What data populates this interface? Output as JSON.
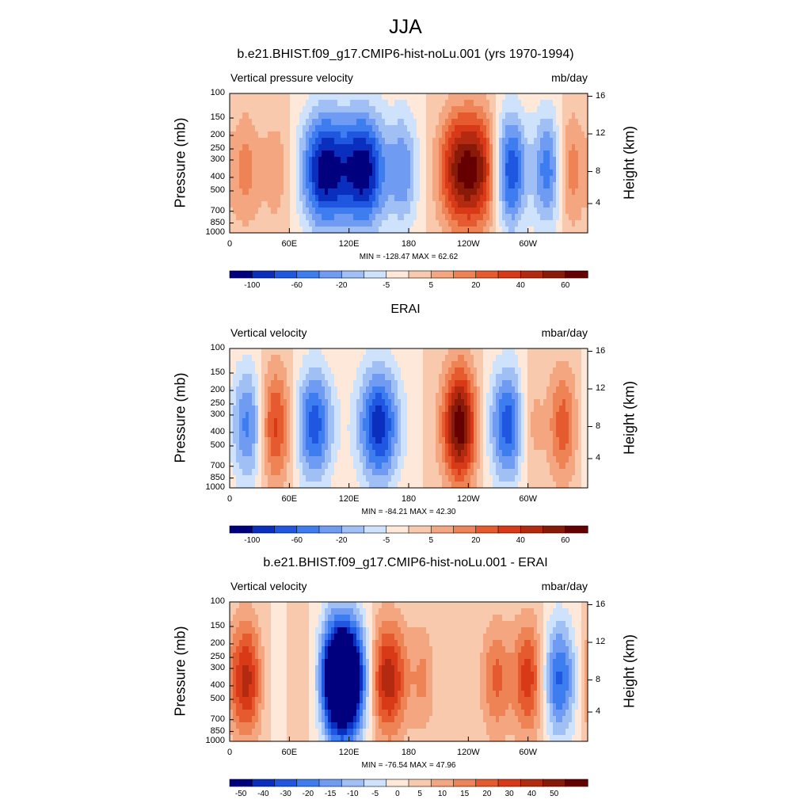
{
  "figure": {
    "main_title": "JJA"
  },
  "chart_data": [
    {
      "type": "heatmap",
      "title": "b.e21.BHIST.f09_g17.CMIP6-hist-noLu.001 (yrs 1970-1994)",
      "left_label": "Vertical pressure velocity",
      "units_label": "mb/day",
      "ylabel": "Pressure (mb)",
      "ylabel_right": "Height (km)",
      "xticks": [
        "0",
        "60E",
        "120E",
        "180",
        "120W",
        "60W"
      ],
      "yticks": [
        "100",
        "150",
        "200",
        "250",
        "300",
        "400",
        "500",
        "700",
        "850",
        "1000"
      ],
      "height_ticks": [
        "16",
        "12",
        "8",
        "4"
      ],
      "stats": "MIN = -128.47  MAX =  62.62",
      "colorbar": {
        "levels": [
          "-100",
          "-60",
          "-20",
          "-5",
          "5",
          "20",
          "40",
          "60"
        ],
        "colors": [
          "#00007f",
          "#0a2fbf",
          "#1f57e0",
          "#3d7df0",
          "#6f9cf2",
          "#a0c0f5",
          "#cfe2fb",
          "#fde8d9",
          "#f9c9ae",
          "#f4a680",
          "#ee8456",
          "#e65a30",
          "#d83a18",
          "#b32a10",
          "#8a1a08",
          "#660000"
        ]
      },
      "features": [
        {
          "lon": 20,
          "sign": 1,
          "strength": 0.45
        },
        {
          "lon": 32,
          "sign": -1,
          "strength": 0.55
        },
        {
          "lon": 40,
          "sign": 1,
          "strength": 0.5
        },
        {
          "lon": 95,
          "sign": -1,
          "strength": 0.75
        },
        {
          "lon": 135,
          "sign": -1,
          "strength": 0.75
        },
        {
          "lon": 175,
          "sign": -1,
          "strength": 0.35
        },
        {
          "lon": 230,
          "sign": 1,
          "strength": 0.6
        },
        {
          "lon": 255,
          "sign": 1,
          "strength": 0.55
        },
        {
          "lon": 285,
          "sign": -1,
          "strength": 0.7
        },
        {
          "lon": 300,
          "sign": 1,
          "strength": 0.3
        },
        {
          "lon": 320,
          "sign": -1,
          "strength": 0.45
        },
        {
          "lon": 342,
          "sign": 1,
          "strength": 0.3
        }
      ]
    },
    {
      "type": "heatmap",
      "title": "ERAI",
      "left_label": "Vertical velocity",
      "units_label": "mbar/day",
      "ylabel": "Pressure (mb)",
      "ylabel_right": "Height (km)",
      "xticks": [
        "0",
        "60E",
        "120E",
        "180",
        "120W",
        "60W"
      ],
      "yticks": [
        "100",
        "150",
        "200",
        "250",
        "300",
        "400",
        "500",
        "700",
        "850",
        "1000"
      ],
      "height_ticks": [
        "16",
        "12",
        "8",
        "4"
      ],
      "stats": "MIN = -84.21  MAX =  42.30",
      "colorbar": {
        "levels": [
          "-100",
          "-60",
          "-20",
          "-5",
          "5",
          "20",
          "40",
          "60"
        ],
        "colors": [
          "#00007f",
          "#0a2fbf",
          "#1f57e0",
          "#3d7df0",
          "#6f9cf2",
          "#a0c0f5",
          "#cfe2fb",
          "#fde8d9",
          "#f9c9ae",
          "#f4a680",
          "#ee8456",
          "#e65a30",
          "#d83a18",
          "#b32a10",
          "#8a1a08",
          "#660000"
        ]
      },
      "features": [
        {
          "lon": 22,
          "sign": -1,
          "strength": 0.55
        },
        {
          "lon": 42,
          "sign": 1,
          "strength": 0.55
        },
        {
          "lon": 85,
          "sign": -1,
          "strength": 0.55
        },
        {
          "lon": 150,
          "sign": -1,
          "strength": 0.65
        },
        {
          "lon": 228,
          "sign": 1,
          "strength": 0.45
        },
        {
          "lon": 235,
          "sign": 1,
          "strength": 0.35
        },
        {
          "lon": 282,
          "sign": -1,
          "strength": 0.6
        },
        {
          "lon": 300,
          "sign": 1,
          "strength": 0.3
        },
        {
          "lon": 335,
          "sign": 1,
          "strength": 0.35
        }
      ]
    },
    {
      "type": "heatmap",
      "title": "b.e21.BHIST.f09_g17.CMIP6-hist-noLu.001 - ERAI",
      "left_label": "Vertical velocity",
      "units_label": "mbar/day",
      "ylabel": "Pressure (mb)",
      "ylabel_right": "Height (km)",
      "xticks": [
        "0",
        "60E",
        "120E",
        "180",
        "120W",
        "60W"
      ],
      "yticks": [
        "100",
        "150",
        "200",
        "250",
        "300",
        "400",
        "500",
        "700",
        "850",
        "1000"
      ],
      "height_ticks": [
        "16",
        "12",
        "8",
        "4"
      ],
      "stats": "MIN = -76.54  MAX =  47.96",
      "colorbar": {
        "levels": [
          "-50",
          "-40",
          "-30",
          "-20",
          "-15",
          "-10",
          "-5",
          "0",
          "5",
          "10",
          "15",
          "20",
          "30",
          "40",
          "50"
        ],
        "colors": [
          "#00007f",
          "#0a2fbf",
          "#1f57e0",
          "#3d7df0",
          "#6f9cf2",
          "#a0c0f5",
          "#cfe2fb",
          "#fde8d9",
          "#f9c9ae",
          "#f4a680",
          "#ee8456",
          "#e65a30",
          "#d83a18",
          "#b32a10",
          "#8a1a08",
          "#660000"
        ]
      },
      "features": [
        {
          "lon": 22,
          "sign": 1,
          "strength": 0.7
        },
        {
          "lon": 34,
          "sign": -1,
          "strength": 0.4
        },
        {
          "lon": 88,
          "sign": 1,
          "strength": 0.4
        },
        {
          "lon": 105,
          "sign": -1,
          "strength": 0.8
        },
        {
          "lon": 118,
          "sign": -1,
          "strength": 0.75
        },
        {
          "lon": 158,
          "sign": 1,
          "strength": 0.6
        },
        {
          "lon": 195,
          "sign": 1,
          "strength": 0.2
        },
        {
          "lon": 272,
          "sign": 1,
          "strength": 0.45
        },
        {
          "lon": 283,
          "sign": -1,
          "strength": 0.4
        },
        {
          "lon": 298,
          "sign": 1,
          "strength": 0.6
        },
        {
          "lon": 330,
          "sign": -1,
          "strength": 0.55
        }
      ]
    }
  ]
}
